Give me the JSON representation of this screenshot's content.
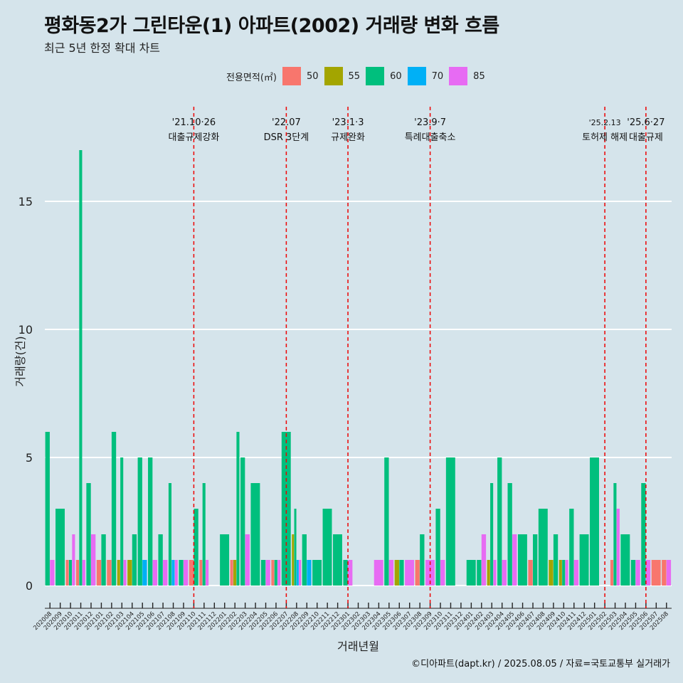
{
  "title": "평화동2가 그린타운(1) 아파트(2002) 거래량 변화 흐름",
  "subtitle": "최근 5년 한정 확대 차트",
  "caption": "©디아파트(dapt.kr) / 2025.08.05 / 자료=국토교통부 실거래가",
  "legend": {
    "title": "전용면적(㎡)",
    "items": [
      {
        "label": "50",
        "color": "#f8766d"
      },
      {
        "label": "55",
        "color": "#a3a500"
      },
      {
        "label": "60",
        "color": "#00bf7d"
      },
      {
        "label": "70",
        "color": "#00b0f6"
      },
      {
        "label": "85",
        "color": "#e76bf3"
      }
    ]
  },
  "chart_data": {
    "type": "bar",
    "xlabel": "거래년월",
    "ylabel": "거래량(건)",
    "ylim": [
      0,
      17
    ],
    "yticks": [
      0,
      5,
      10,
      15
    ],
    "grid": true,
    "categories": [
      "202008",
      "202009",
      "202010",
      "202011",
      "202012",
      "202101",
      "202102",
      "202103",
      "202104",
      "202105",
      "202106",
      "202107",
      "202108",
      "202109",
      "202110",
      "202111",
      "202112",
      "202201",
      "202202",
      "202203",
      "202204",
      "202205",
      "202206",
      "202207",
      "202208",
      "202209",
      "202210",
      "202211",
      "202212",
      "202301",
      "202302",
      "202303",
      "202304",
      "202305",
      "202306",
      "202307",
      "202308",
      "202309",
      "202310",
      "202311",
      "202312",
      "202401",
      "202402",
      "202403",
      "202404",
      "202405",
      "202406",
      "202407",
      "202408",
      "202409",
      "202410",
      "202411",
      "202412",
      "202501",
      "202502",
      "202503",
      "202504",
      "202505",
      "202506",
      "202507",
      "202508"
    ],
    "series": [
      {
        "name": "50",
        "values": [
          0,
          0,
          1,
          1,
          0,
          1,
          1,
          0,
          0,
          0,
          0,
          0,
          0,
          0,
          1,
          1,
          0,
          0,
          1,
          0,
          0,
          0,
          1,
          0,
          0,
          0,
          0,
          0,
          0,
          0,
          0,
          0,
          0,
          0,
          0,
          0,
          1,
          0,
          0,
          0,
          0,
          0,
          0,
          0,
          0,
          0,
          0,
          1,
          0,
          0,
          0,
          0,
          0,
          0,
          0,
          1,
          0,
          0,
          0,
          1,
          1
        ]
      },
      {
        "name": "55",
        "values": [
          0,
          0,
          0,
          0,
          0,
          0,
          0,
          1,
          1,
          0,
          0,
          0,
          0,
          0,
          0,
          0,
          0,
          0,
          1,
          0,
          0,
          0,
          0,
          0,
          2,
          0,
          0,
          0,
          0,
          0,
          0,
          0,
          0,
          0,
          1,
          0,
          0,
          0,
          0,
          0,
          0,
          0,
          0,
          1,
          0,
          0,
          0,
          0,
          0,
          1,
          1,
          0,
          0,
          0,
          0,
          0,
          0,
          0,
          0,
          0,
          0
        ]
      },
      {
        "name": "60",
        "values": [
          6,
          3,
          1,
          17,
          4,
          2,
          6,
          5,
          2,
          5,
          5,
          2,
          4,
          1,
          3,
          4,
          0,
          2,
          6,
          5,
          4,
          1,
          1,
          6,
          3,
          2,
          1,
          3,
          2,
          1,
          0,
          0,
          0,
          5,
          1,
          0,
          2,
          0,
          3,
          5,
          0,
          1,
          1,
          4,
          5,
          4,
          2,
          2,
          3,
          2,
          1,
          3,
          2,
          5,
          0,
          4,
          2,
          1,
          4,
          0,
          0
        ]
      },
      {
        "name": "70",
        "values": [
          0,
          0,
          0,
          0,
          0,
          0,
          0,
          0,
          0,
          1,
          0,
          0,
          1,
          0,
          0,
          0,
          0,
          0,
          0,
          0,
          0,
          0,
          0,
          0,
          1,
          1,
          0,
          0,
          0,
          0,
          0,
          0,
          0,
          0,
          0,
          0,
          0,
          0,
          0,
          0,
          0,
          0,
          0,
          0,
          0,
          0,
          0,
          0,
          0,
          0,
          0,
          0,
          0,
          0,
          0,
          0,
          0,
          0,
          0,
          0,
          0
        ]
      },
      {
        "name": "85",
        "values": [
          1,
          0,
          2,
          1,
          2,
          0,
          0,
          1,
          0,
          0,
          1,
          1,
          1,
          1,
          0,
          1,
          0,
          0,
          0,
          2,
          0,
          1,
          1,
          0,
          1,
          0,
          0,
          0,
          0,
          1,
          0,
          0,
          1,
          1,
          0,
          1,
          0,
          1,
          1,
          0,
          0,
          0,
          2,
          1,
          1,
          2,
          0,
          0,
          0,
          0,
          1,
          1,
          0,
          0,
          0,
          3,
          0,
          1,
          1,
          0,
          1
        ]
      }
    ],
    "events": [
      {
        "line1": "'21.10·26",
        "line2": "대출규제강화",
        "at": "202110"
      },
      {
        "line1": "'22.07",
        "line2": "DSR 3단계",
        "at": "202207"
      },
      {
        "line1": "'23.1·3",
        "line2": "규제완화",
        "at": "202301"
      },
      {
        "line1": "'23.9·7",
        "line2": "특례대출축소",
        "at": "202309"
      },
      {
        "line1": "'25.2.13",
        "line2": "토허제 해제",
        "at": "202502"
      },
      {
        "line1": "'25.6·27",
        "line2": "대출규제",
        "at": "202506"
      }
    ],
    "event_color": "#ee0000"
  }
}
